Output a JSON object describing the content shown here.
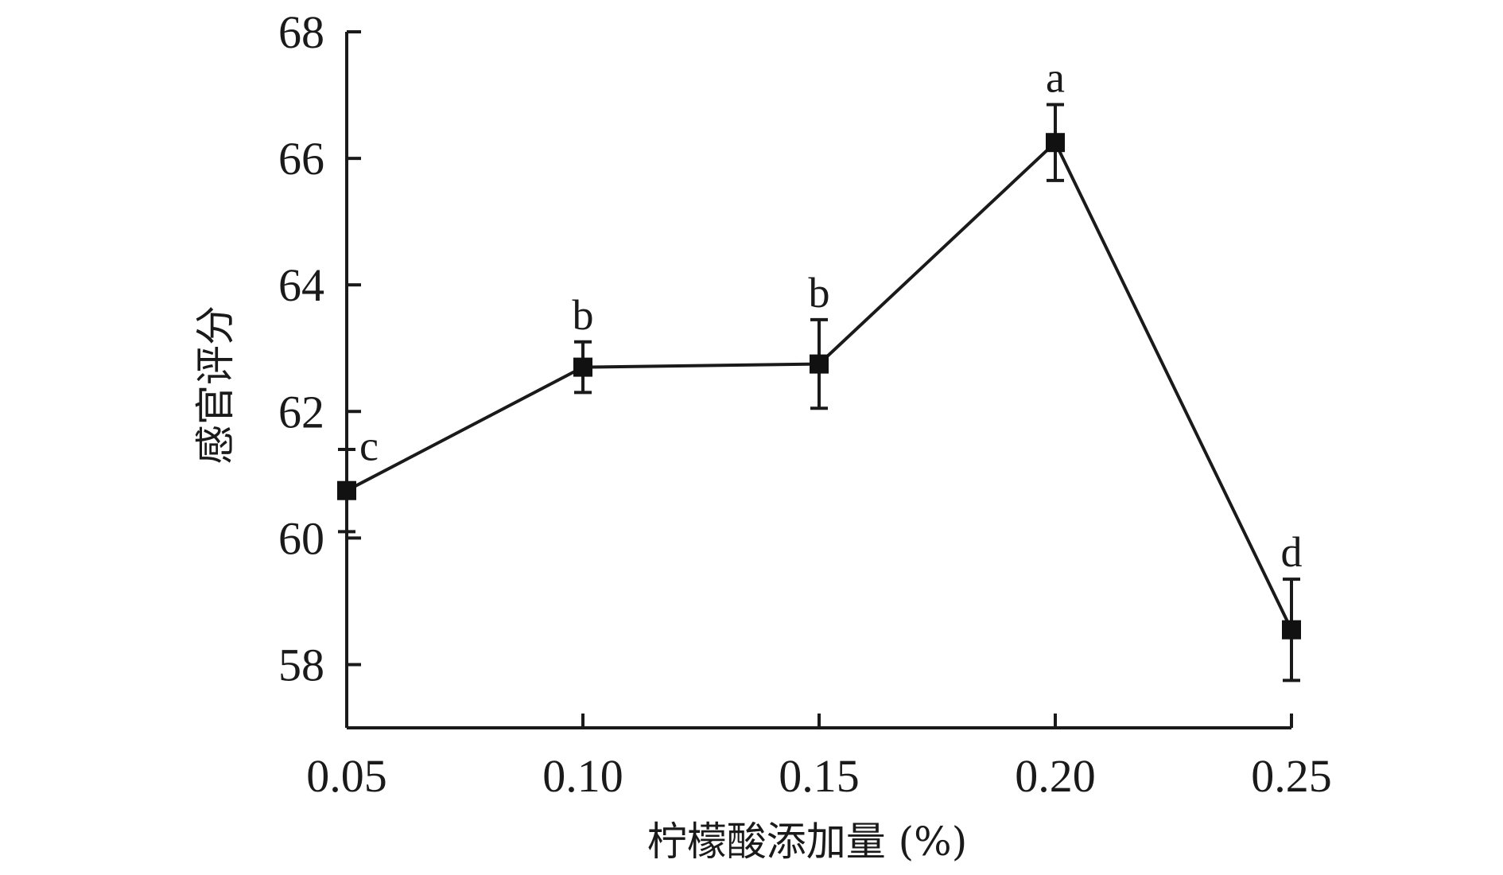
{
  "chart_data": {
    "type": "line",
    "title": "",
    "xlabel": "柠檬酸添加量 (%)",
    "ylabel": "感官评分",
    "xlim": [
      0.05,
      0.25
    ],
    "ylim": [
      57,
      68
    ],
    "x_ticks": [
      "0.05",
      "0.10",
      "0.15",
      "0.20",
      "0.25"
    ],
    "y_ticks": [
      "58",
      "60",
      "62",
      "64",
      "66",
      "68"
    ],
    "grid": false,
    "series": [
      {
        "x": [
          0.05,
          0.1,
          0.15,
          0.2,
          0.25
        ],
        "y": [
          60.75,
          62.7,
          62.75,
          66.25,
          58.55
        ],
        "error": [
          0.65,
          0.4,
          0.7,
          0.6,
          0.8
        ],
        "significance_labels": [
          "c",
          "b",
          "b",
          "a",
          "d"
        ],
        "color": "#111111",
        "marker": "square"
      }
    ]
  }
}
